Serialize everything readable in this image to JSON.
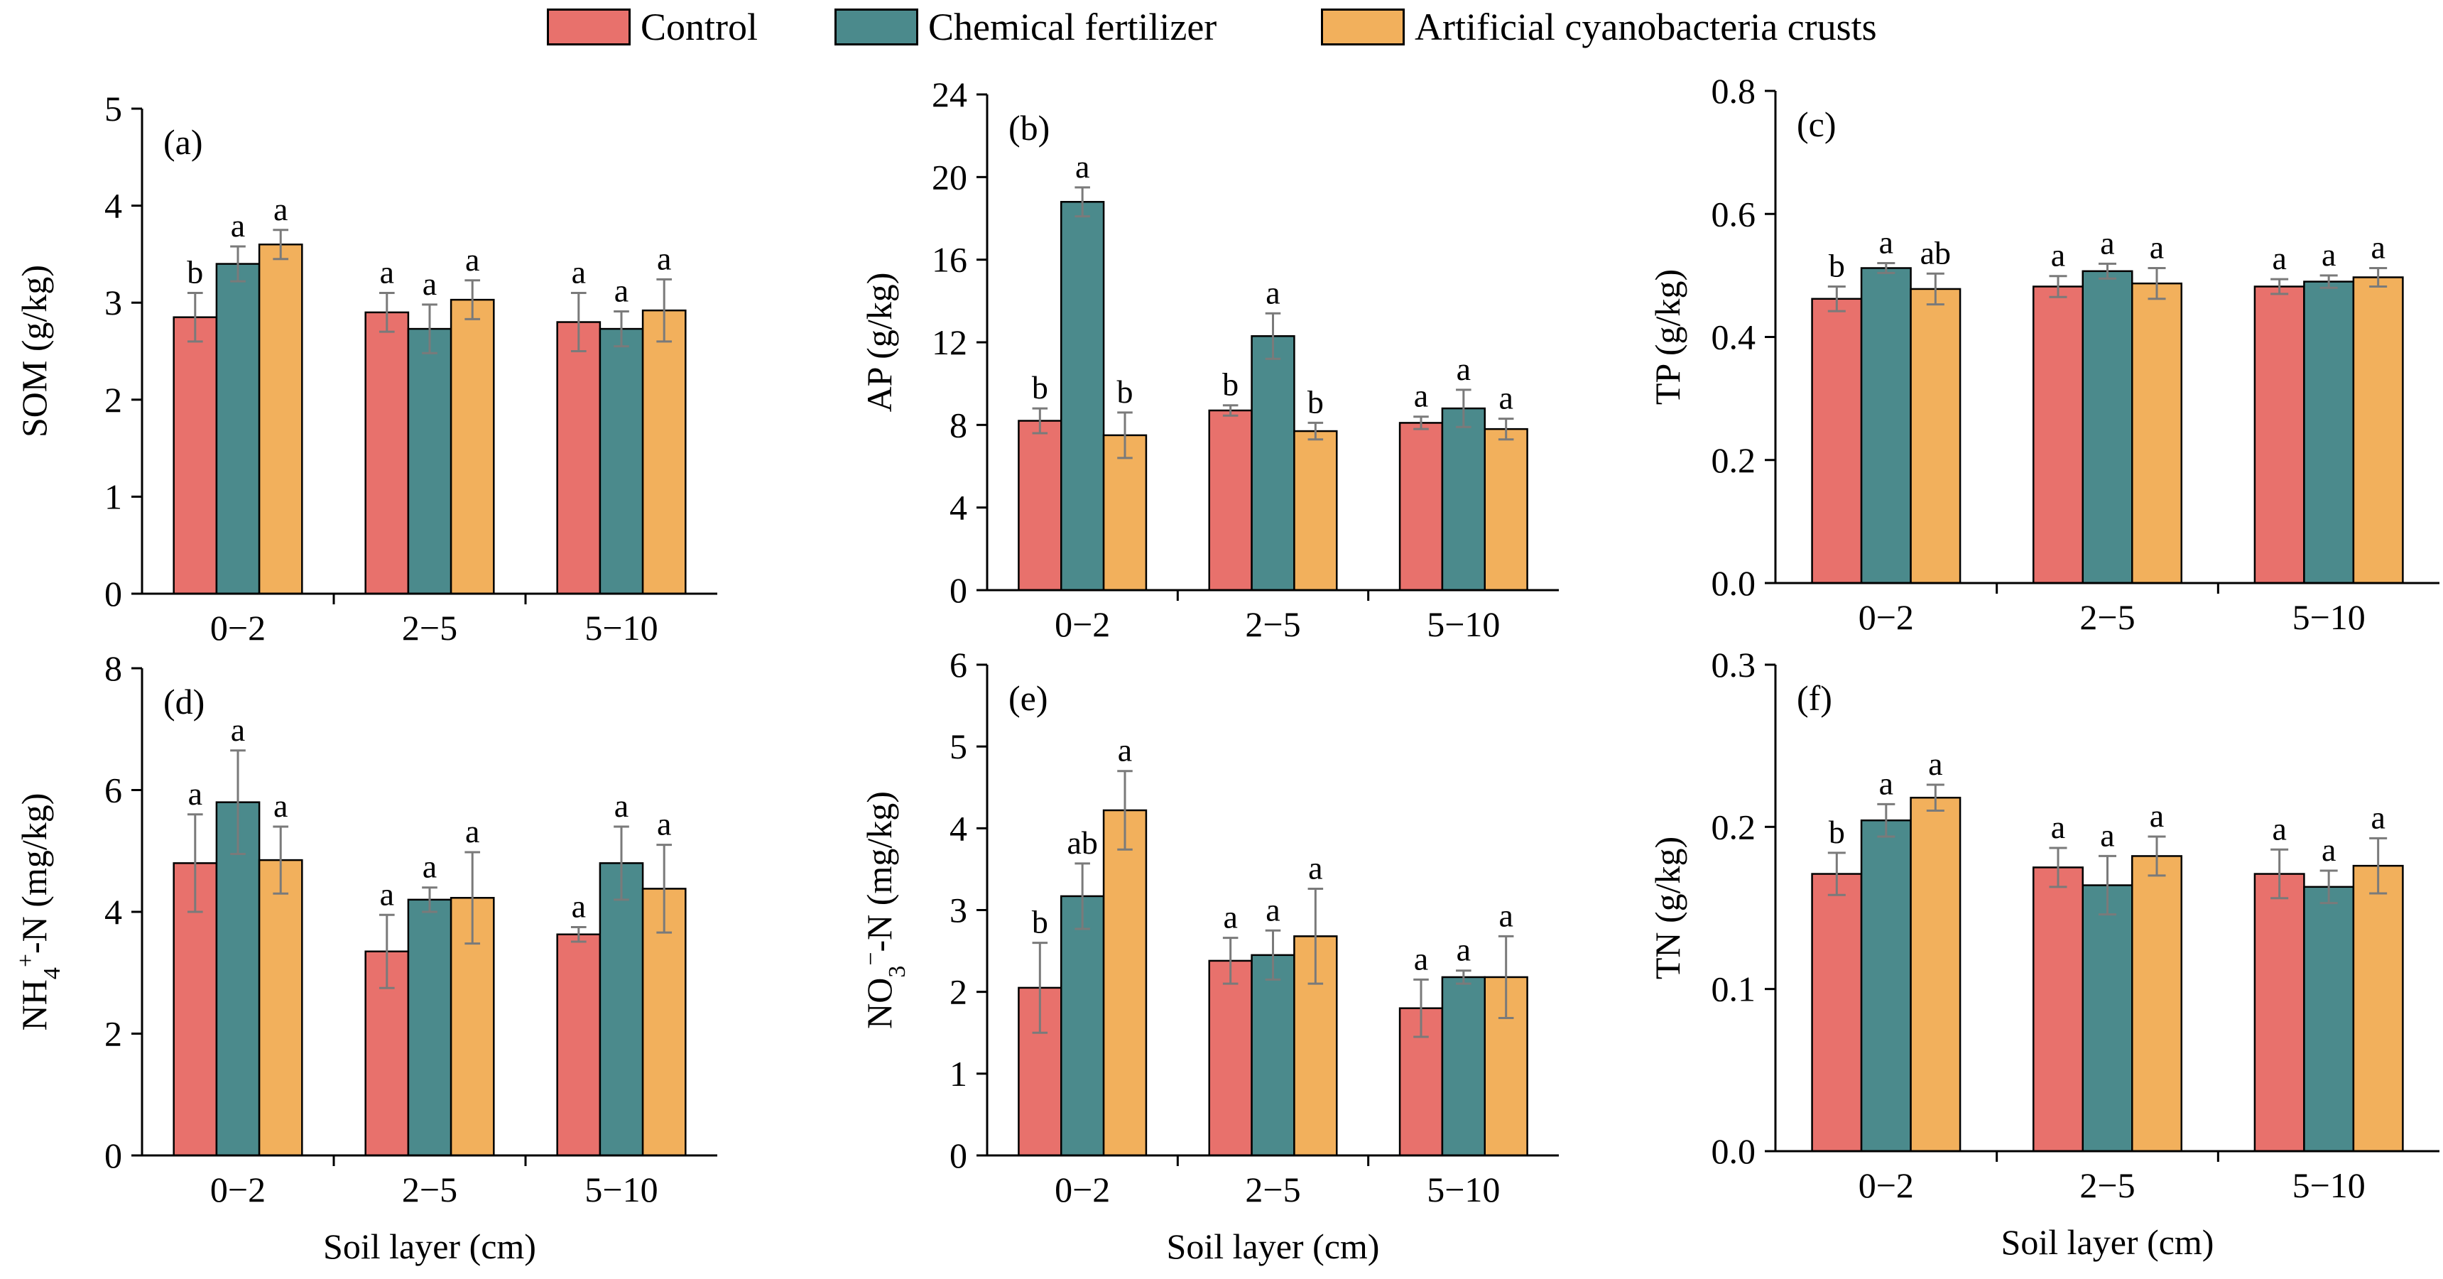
{
  "colors": {
    "control": "#e8716c",
    "chemical": "#4b8a8c",
    "crusts": "#f2b05c",
    "error_bar": "#7a7a7a"
  },
  "legend": [
    {
      "label": "Control",
      "color": "#e8716c"
    },
    {
      "label": "Chemical fertilizer",
      "color": "#4b8a8c"
    },
    {
      "label": "Artificial cyanobacteria crusts",
      "color": "#f2b05c"
    }
  ],
  "chart_data": [
    {
      "type": "bar",
      "panel": "(a)",
      "ylabel": "SOM (g/kg)",
      "xlabel": "",
      "categories": [
        "0−2",
        "2−5",
        "5−10"
      ],
      "ylim": [
        0,
        5
      ],
      "yticks": [
        "0",
        "1",
        "2",
        "3",
        "4",
        "5"
      ],
      "series": [
        {
          "name": "Control",
          "values": [
            2.85,
            2.9,
            2.8
          ],
          "errors": [
            0.25,
            0.2,
            0.3
          ],
          "letters": [
            "b",
            "a",
            "a"
          ]
        },
        {
          "name": "Chemical fertilizer",
          "values": [
            3.4,
            2.73,
            2.73
          ],
          "errors": [
            0.18,
            0.25,
            0.18
          ],
          "letters": [
            "a",
            "a",
            "a"
          ]
        },
        {
          "name": "Artificial cyanobacteria crusts",
          "values": [
            3.6,
            3.03,
            2.92
          ],
          "errors": [
            0.15,
            0.2,
            0.32
          ],
          "letters": [
            "a",
            "a",
            "a"
          ]
        }
      ]
    },
    {
      "type": "bar",
      "panel": "(b)",
      "ylabel": "AP (g/kg)",
      "xlabel": "",
      "categories": [
        "0−2",
        "2−5",
        "5−10"
      ],
      "ylim": [
        0,
        24
      ],
      "yticks": [
        "0",
        "4",
        "8",
        "12",
        "16",
        "20",
        "24"
      ],
      "series": [
        {
          "name": "Control",
          "values": [
            8.2,
            8.7,
            8.1
          ],
          "errors": [
            0.6,
            0.25,
            0.3
          ],
          "letters": [
            "b",
            "b",
            "a"
          ]
        },
        {
          "name": "Chemical fertilizer",
          "values": [
            18.8,
            12.3,
            8.8
          ],
          "errors": [
            0.7,
            1.1,
            0.9
          ],
          "letters": [
            "a",
            "a",
            "a"
          ]
        },
        {
          "name": "Artificial cyanobacteria crusts",
          "values": [
            7.5,
            7.7,
            7.8
          ],
          "errors": [
            1.1,
            0.4,
            0.5
          ],
          "letters": [
            "b",
            "b",
            "a"
          ]
        }
      ]
    },
    {
      "type": "bar",
      "panel": "(c)",
      "ylabel": "TP (g/kg)",
      "xlabel": "",
      "categories": [
        "0−2",
        "2−5",
        "5−10"
      ],
      "ylim": [
        0,
        0.8
      ],
      "yticks": [
        "0.0",
        "0.2",
        "0.4",
        "0.6",
        "0.8"
      ],
      "series": [
        {
          "name": "Control",
          "values": [
            0.462,
            0.482,
            0.482
          ],
          "errors": [
            0.02,
            0.017,
            0.012
          ],
          "letters": [
            "b",
            "a",
            "a"
          ]
        },
        {
          "name": "Chemical fertilizer",
          "values": [
            0.512,
            0.507,
            0.49
          ],
          "errors": [
            0.008,
            0.012,
            0.01
          ],
          "letters": [
            "a",
            "a",
            "a"
          ]
        },
        {
          "name": "Artificial cyanobacteria crusts",
          "values": [
            0.478,
            0.487,
            0.497
          ],
          "errors": [
            0.025,
            0.025,
            0.015
          ],
          "letters": [
            "ab",
            "a",
            "a"
          ]
        }
      ]
    },
    {
      "type": "bar",
      "panel": "(d)",
      "ylabel": "NH4+-N (mg/kg)",
      "xlabel": "Soil layer (cm)",
      "categories": [
        "0−2",
        "2−5",
        "5−10"
      ],
      "ylim": [
        0,
        8
      ],
      "yticks": [
        "0",
        "2",
        "4",
        "6",
        "8"
      ],
      "series": [
        {
          "name": "Control",
          "values": [
            4.8,
            3.35,
            3.63
          ],
          "errors": [
            0.8,
            0.6,
            0.12
          ],
          "letters": [
            "a",
            "a",
            "a"
          ]
        },
        {
          "name": "Chemical fertilizer",
          "values": [
            5.8,
            4.2,
            4.8
          ],
          "errors": [
            0.85,
            0.2,
            0.6
          ],
          "letters": [
            "a",
            "a",
            "a"
          ]
        },
        {
          "name": "Artificial cyanobacteria crusts",
          "values": [
            4.85,
            4.23,
            4.38
          ],
          "errors": [
            0.55,
            0.75,
            0.72
          ],
          "letters": [
            "a",
            "a",
            "a"
          ]
        }
      ]
    },
    {
      "type": "bar",
      "panel": "(e)",
      "ylabel": "NO3−-N (mg/kg)",
      "xlabel": "Soil layer (cm)",
      "categories": [
        "0−2",
        "2−5",
        "5−10"
      ],
      "ylim": [
        0,
        6
      ],
      "yticks": [
        "0",
        "1",
        "2",
        "3",
        "4",
        "5",
        "6"
      ],
      "series": [
        {
          "name": "Control",
          "values": [
            2.05,
            2.38,
            1.8
          ],
          "errors": [
            0.55,
            0.28,
            0.35
          ],
          "letters": [
            "b",
            "a",
            "a"
          ]
        },
        {
          "name": "Chemical fertilizer",
          "values": [
            3.17,
            2.45,
            2.18
          ],
          "errors": [
            0.4,
            0.3,
            0.08
          ],
          "letters": [
            "ab",
            "a",
            "a"
          ]
        },
        {
          "name": "Artificial cyanobacteria crusts",
          "values": [
            4.22,
            2.68,
            2.18
          ],
          "errors": [
            0.48,
            0.58,
            0.5
          ],
          "letters": [
            "a",
            "a",
            "a"
          ]
        }
      ]
    },
    {
      "type": "bar",
      "panel": "(f)",
      "ylabel": "TN (g/kg)",
      "xlabel": "Soil layer (cm)",
      "categories": [
        "0−2",
        "2−5",
        "5−10"
      ],
      "ylim": [
        0,
        0.3
      ],
      "yticks": [
        "0.0",
        "0.1",
        "0.2",
        "0.3"
      ],
      "series": [
        {
          "name": "Control",
          "values": [
            0.171,
            0.175,
            0.171
          ],
          "errors": [
            0.013,
            0.012,
            0.015
          ],
          "letters": [
            "b",
            "a",
            "a"
          ]
        },
        {
          "name": "Chemical fertilizer",
          "values": [
            0.204,
            0.164,
            0.163
          ],
          "errors": [
            0.01,
            0.018,
            0.01
          ],
          "letters": [
            "a",
            "a",
            "a"
          ]
        },
        {
          "name": "Artificial cyanobacteria crusts",
          "values": [
            0.218,
            0.182,
            0.176
          ],
          "errors": [
            0.008,
            0.012,
            0.017
          ],
          "letters": [
            "a",
            "a",
            "a"
          ]
        }
      ]
    }
  ]
}
